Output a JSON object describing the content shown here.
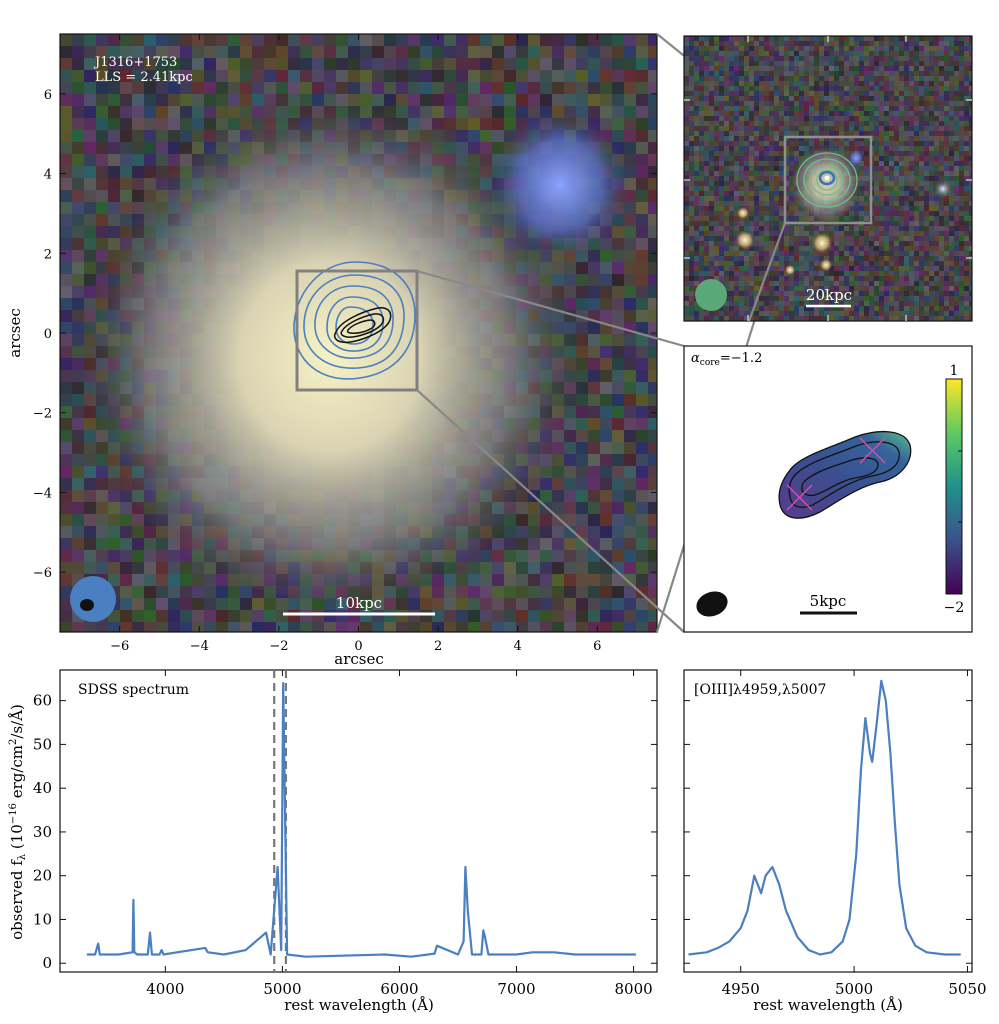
{
  "main_panel": {
    "source_name": "J1316+1753",
    "lls_label": "LLS = 2.41kpc",
    "scale_label": "10kpc",
    "xlabel": "arcsec",
    "ylabel": "arcsec",
    "xlim": [
      -7.5,
      7.5
    ],
    "ylim": [
      -7.5,
      7.5
    ],
    "xticks": [
      "−6",
      "−4",
      "−2",
      "0",
      "2",
      "4",
      "6"
    ],
    "yticks": [
      "6",
      "4",
      "2",
      "0",
      "−2",
      "−4",
      "−6"
    ]
  },
  "wide_panel": {
    "scale_label": "20kpc"
  },
  "spix_panel": {
    "alpha_label": "α",
    "alpha_sub": "core",
    "alpha_value": "=−1.2",
    "scale_label": "5kpc",
    "colorbar_top": "1",
    "colorbar_bottom": "−2",
    "colorbar_range": [
      -2,
      1
    ]
  },
  "spectrum_panel": {
    "label": "SDSS spectrum",
    "xlabel": "rest wavelength (Å)",
    "ylabel": "observed f",
    "ylabel_sub": "λ",
    "ylabel_unit": " (10",
    "ylabel_exp": "−16",
    "ylabel_tail": " erg/cm",
    "ylabel_exp2": "2",
    "ylabel_tail2": "/s/Å)",
    "xticks": [
      "4000",
      "5000",
      "6000",
      "7000",
      "8000"
    ],
    "yticks": [
      "0",
      "10",
      "20",
      "30",
      "40",
      "50",
      "60"
    ]
  },
  "oiii_panel": {
    "label": "[OIII]λ4959,λ5007",
    "xlabel": "rest wavelength (Å)",
    "xticks": [
      "4950",
      "5000",
      "5050"
    ]
  },
  "chart_data": [
    {
      "type": "line",
      "title": "SDSS spectrum",
      "xlabel": "rest wavelength (Å)",
      "ylabel": "observed fλ (10^-16 erg/cm2/s/Å)",
      "xlim": [
        3100,
        8200
      ],
      "ylim": [
        -2,
        67
      ],
      "vlines": [
        4930,
        5030
      ],
      "x": [
        3330,
        3400,
        3426,
        3440,
        3600,
        3720,
        3727,
        3735,
        3760,
        3850,
        3869,
        3885,
        3950,
        3968,
        3985,
        4100,
        4340,
        4363,
        4500,
        4686,
        4861,
        4900,
        4959,
        4990,
        5007,
        5040,
        5200,
        5876,
        6100,
        6300,
        6320,
        6500,
        6548,
        6563,
        6584,
        6620,
        6700,
        6716,
        6731,
        6760,
        7000,
        7135,
        7320,
        7500,
        7800,
        8020
      ],
      "y": [
        2,
        2,
        4.5,
        2,
        2,
        2.5,
        14.5,
        2.5,
        2,
        2,
        7,
        2,
        2,
        3,
        2,
        2.5,
        3.5,
        2.5,
        2,
        3,
        7,
        2,
        22,
        3,
        64,
        2,
        1.5,
        2,
        1.5,
        2.2,
        4,
        2,
        5,
        22,
        12,
        2,
        2,
        7.5,
        6,
        2,
        2,
        2.5,
        2.5,
        2,
        2,
        2
      ]
    },
    {
      "type": "line",
      "title": "[OIII]λ4959,λ5007",
      "xlabel": "rest wavelength (Å)",
      "xlim": [
        4925,
        5052
      ],
      "ylim": [
        -2,
        67
      ],
      "x": [
        4927,
        4935,
        4940,
        4945,
        4950,
        4953,
        4956,
        4959,
        4961,
        4964,
        4967,
        4970,
        4975,
        4980,
        4985,
        4990,
        4995,
        4998,
        5001,
        5003,
        5005,
        5007,
        5008,
        5010,
        5012,
        5014,
        5016,
        5018,
        5020,
        5023,
        5027,
        5032,
        5040,
        5047
      ],
      "y": [
        2,
        2.5,
        3.5,
        5,
        8,
        12,
        20,
        16,
        20,
        22,
        18,
        12,
        6,
        3,
        2,
        2.5,
        5,
        10,
        25,
        44,
        56,
        48,
        46,
        55,
        64.5,
        60,
        48,
        32,
        18,
        8,
        4,
        2.5,
        2,
        2
      ]
    }
  ]
}
